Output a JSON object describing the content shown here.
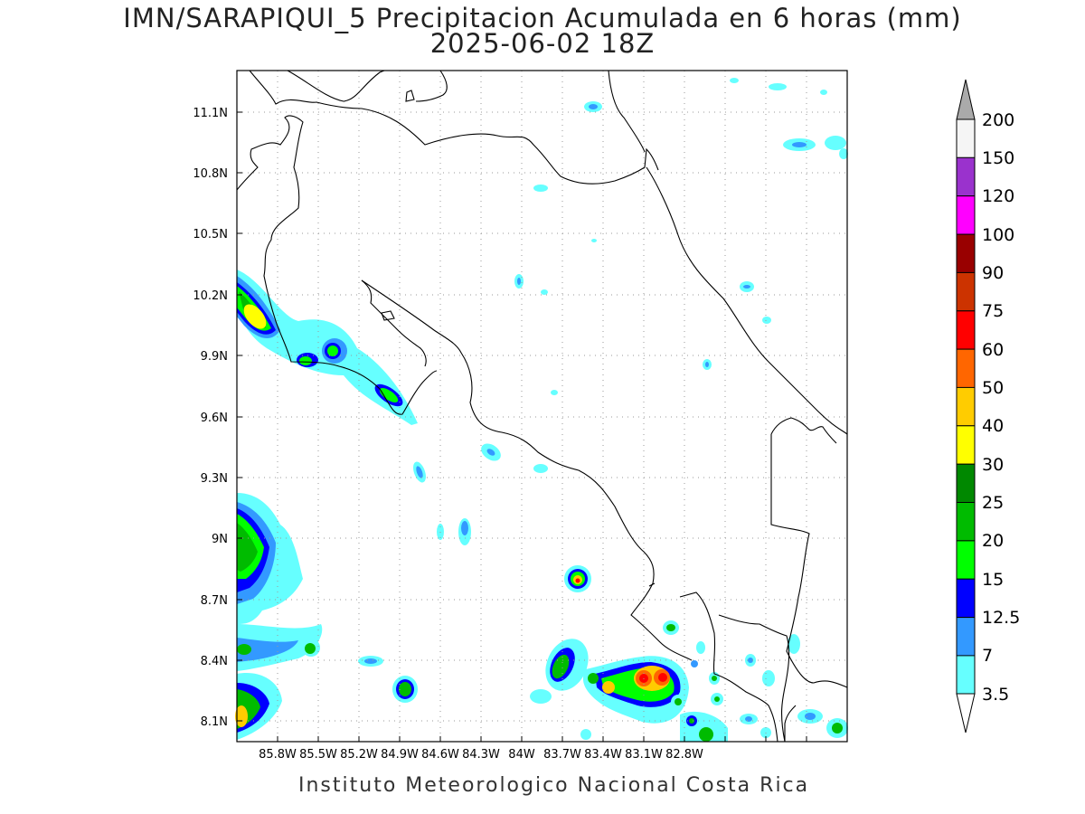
{
  "title": {
    "line1": "IMN/SARAPIQUI_5 Precipitacion Acumulada en 6 horas (mm)",
    "line2": "2025-06-02 18Z"
  },
  "footer": "Instituto Meteorologico Nacional Costa Rica",
  "map": {
    "lon_range": [
      -86.0,
      -83.0
    ],
    "lat_range": [
      8.0,
      11.2
    ],
    "lon_ticks": [
      "85.8W",
      "85.5W",
      "85.2W",
      "84.9W",
      "84.6W",
      "84.3W",
      "84W",
      "83.7W",
      "83.4W",
      "83.1W",
      "82.8W"
    ],
    "lat_ticks": [
      "11.1N",
      "10.8N",
      "10.5N",
      "10.2N",
      "9.9N",
      "9.6N",
      "9.3N",
      "9N",
      "8.7N",
      "8.4N",
      "8.1N"
    ],
    "grid": true
  },
  "colorbar": {
    "labels": [
      "200",
      "150",
      "120",
      "100",
      "90",
      "75",
      "60",
      "50",
      "40",
      "30",
      "25",
      "20",
      "15",
      "12.5",
      "7",
      "3.5"
    ],
    "colors": [
      "#f5f5f5",
      "#9a32cd",
      "#ff00ff",
      "#990000",
      "#cc3300",
      "#ff0000",
      "#ff6600",
      "#ffcc00",
      "#ffff00",
      "#008800",
      "#00bb00",
      "#00ff00",
      "#0000ff",
      "#3399ff",
      "#66ffff"
    ],
    "top_arrow": "#aaaaaa",
    "bottom_arrow": "#ffffff"
  }
}
